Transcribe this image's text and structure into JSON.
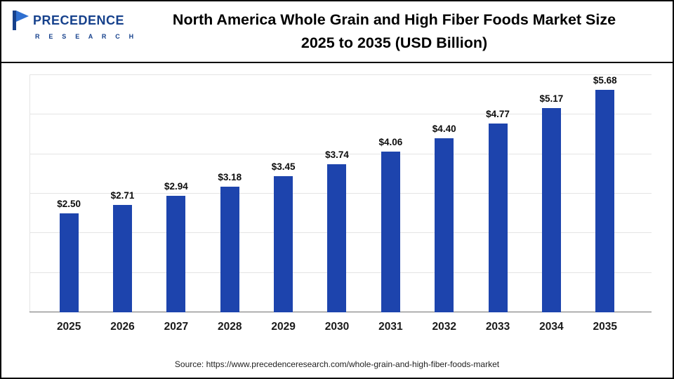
{
  "header": {
    "logo": {
      "name": "PRECEDENCE",
      "subname": "R E S E A R C H",
      "color": "#16418c"
    },
    "title_line1": "North America Whole Grain and High Fiber Foods Market Size",
    "title_line2": "2025 to 2035 (USD Billion)"
  },
  "chart_data": {
    "type": "bar",
    "title": "North America Whole Grain and High Fiber Foods Market Size 2025 to 2035 (USD Billion)",
    "categories": [
      "2025",
      "2026",
      "2027",
      "2028",
      "2029",
      "2030",
      "2031",
      "2032",
      "2033",
      "2034",
      "2035"
    ],
    "values": [
      2.5,
      2.71,
      2.94,
      3.18,
      3.45,
      3.74,
      4.06,
      4.4,
      4.77,
      5.17,
      5.68
    ],
    "value_labels": [
      "$2.50",
      "$2.71",
      "$2.94",
      "$3.18",
      "$3.45",
      "$3.74",
      "$4.06",
      "$4.40",
      "$4.77",
      "$5.17",
      "$5.68"
    ],
    "unit": "USD Billion",
    "xlabel": "",
    "ylabel": "",
    "ylim": [
      0,
      6
    ],
    "grid_step": 1,
    "grid": "horizontal",
    "legend": "none",
    "bar_color": "#1d44ad"
  },
  "footer": {
    "source": "Source: https://www.precedenceresearch.com/whole-grain-and-high-fiber-foods-market"
  }
}
